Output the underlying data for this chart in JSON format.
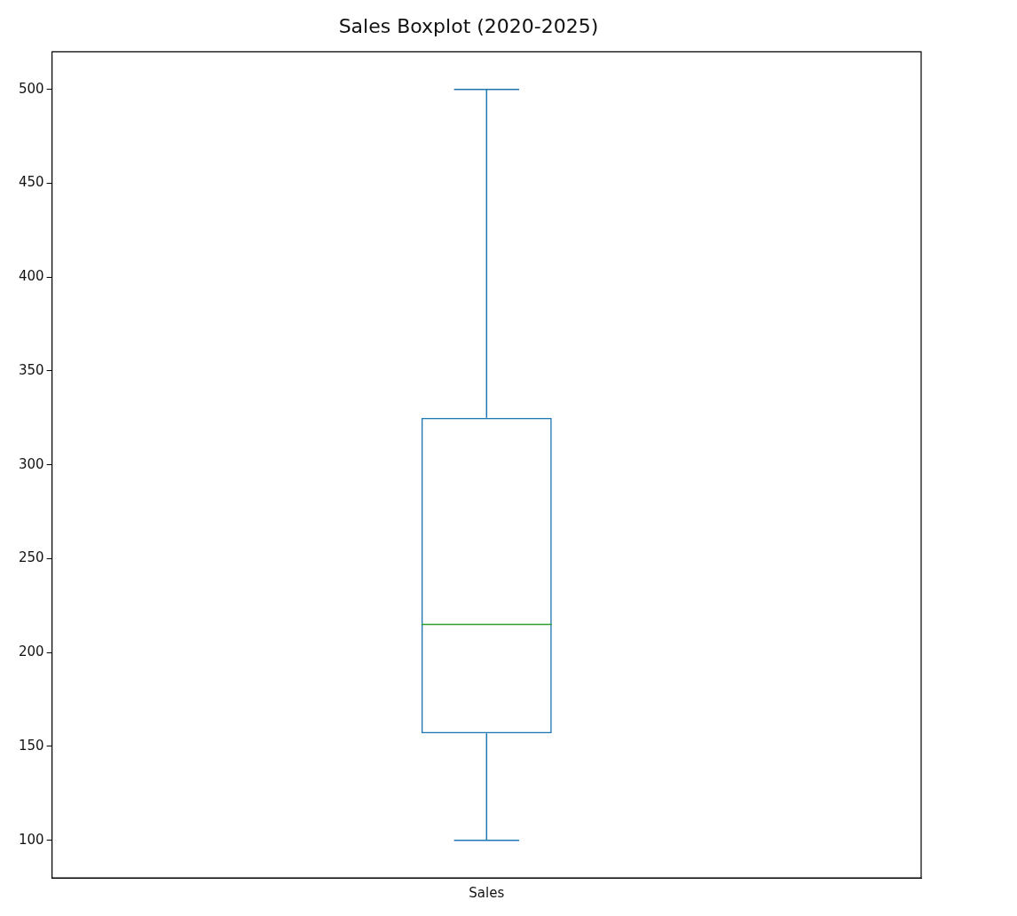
{
  "chart_data": {
    "type": "box",
    "title": "Sales Boxplot (2020-2025)",
    "categories": [
      "Sales"
    ],
    "series": [
      {
        "color": "#1f77b4",
        "boxes": [
          {
            "low": 100,
            "q1": 157,
            "median": 215,
            "q3": 325,
            "high": 500
          }
        ]
      }
    ],
    "ylim": [
      80,
      520
    ],
    "yticks": [
      100,
      150,
      200,
      250,
      300,
      350,
      400,
      450,
      500
    ],
    "grid": false
  }
}
